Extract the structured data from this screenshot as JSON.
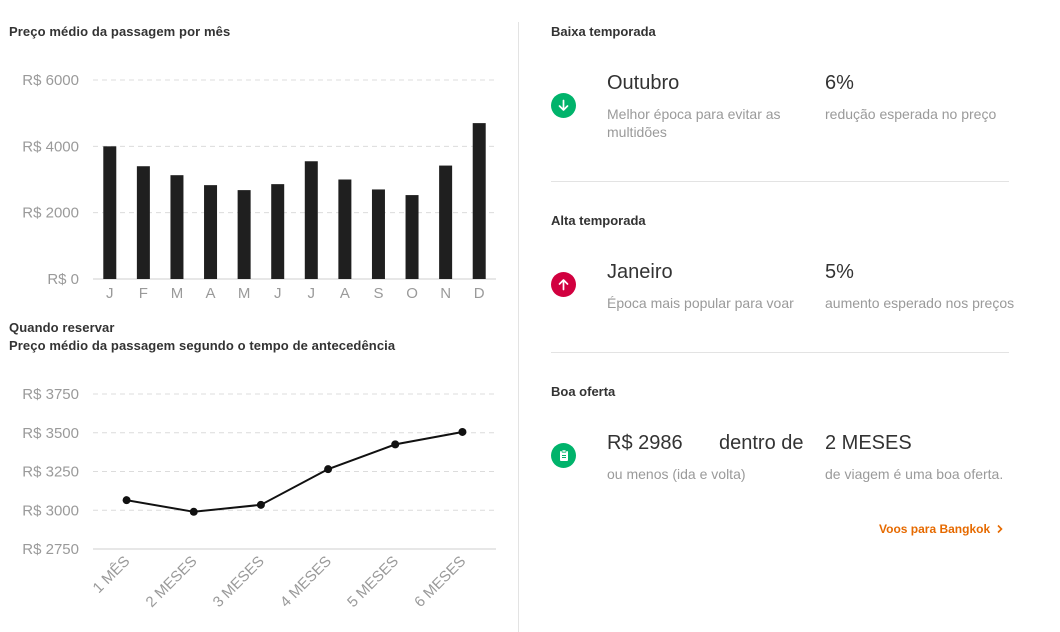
{
  "monthly_chart": {
    "title": "Preço médio da passagem por mês"
  },
  "advance_chart": {
    "title_line1": "Quando reservar",
    "title_line2": "Preço médio da passagem segundo o tempo de antecedência"
  },
  "chart_data": [
    {
      "type": "bar",
      "title": "Preço médio da passagem por mês",
      "categories": [
        "J",
        "F",
        "M",
        "A",
        "M",
        "J",
        "J",
        "A",
        "S",
        "O",
        "N",
        "D"
      ],
      "values": [
        4000,
        3400,
        3130,
        2830,
        2680,
        2860,
        3550,
        3000,
        2700,
        2530,
        3420,
        4700
      ],
      "y_ticks": [
        "R$ 6000",
        "R$ 4000",
        "R$ 2000",
        "R$ 0"
      ],
      "ylim": [
        0,
        6000
      ],
      "grid": true
    },
    {
      "type": "line",
      "title": "Preço médio da passagem segundo o tempo de antecedência",
      "categories": [
        "1 MÊS",
        "2 MESES",
        "3 MESES",
        "4 MESES",
        "5 MESES",
        "6 MESES"
      ],
      "values": [
        3065,
        2990,
        3035,
        3265,
        3425,
        3505
      ],
      "y_ticks": [
        "R$ 3750",
        "R$ 3500",
        "R$ 3250",
        "R$ 3000",
        "R$ 2750"
      ],
      "ylim": [
        2750,
        3750
      ],
      "grid": true
    }
  ],
  "low_season": {
    "heading": "Baixa temporada",
    "month": "Outubro",
    "month_desc": "Melhor época para evitar as multidões",
    "percent": "6%",
    "percent_desc": "redução esperada no preço",
    "icon": "arrow-down-icon",
    "color": "#00b36b"
  },
  "high_season": {
    "heading": "Alta temporada",
    "month": "Janeiro",
    "month_desc": "Época mais popular para voar",
    "percent": "5%",
    "percent_desc": "aumento esperado nos preços",
    "icon": "arrow-up-icon",
    "color": "#d1003f"
  },
  "good_deal": {
    "heading": "Boa oferta",
    "price": "R$ 2986",
    "within": "dentro de",
    "price_desc": "ou menos (ida e volta)",
    "period": "2 MESES",
    "period_desc": "de viagem é uma boa oferta.",
    "icon": "clipboard-icon",
    "color": "#00b36b"
  },
  "link": {
    "label": "Voos para Bangkok",
    "color": "#e66a00"
  }
}
